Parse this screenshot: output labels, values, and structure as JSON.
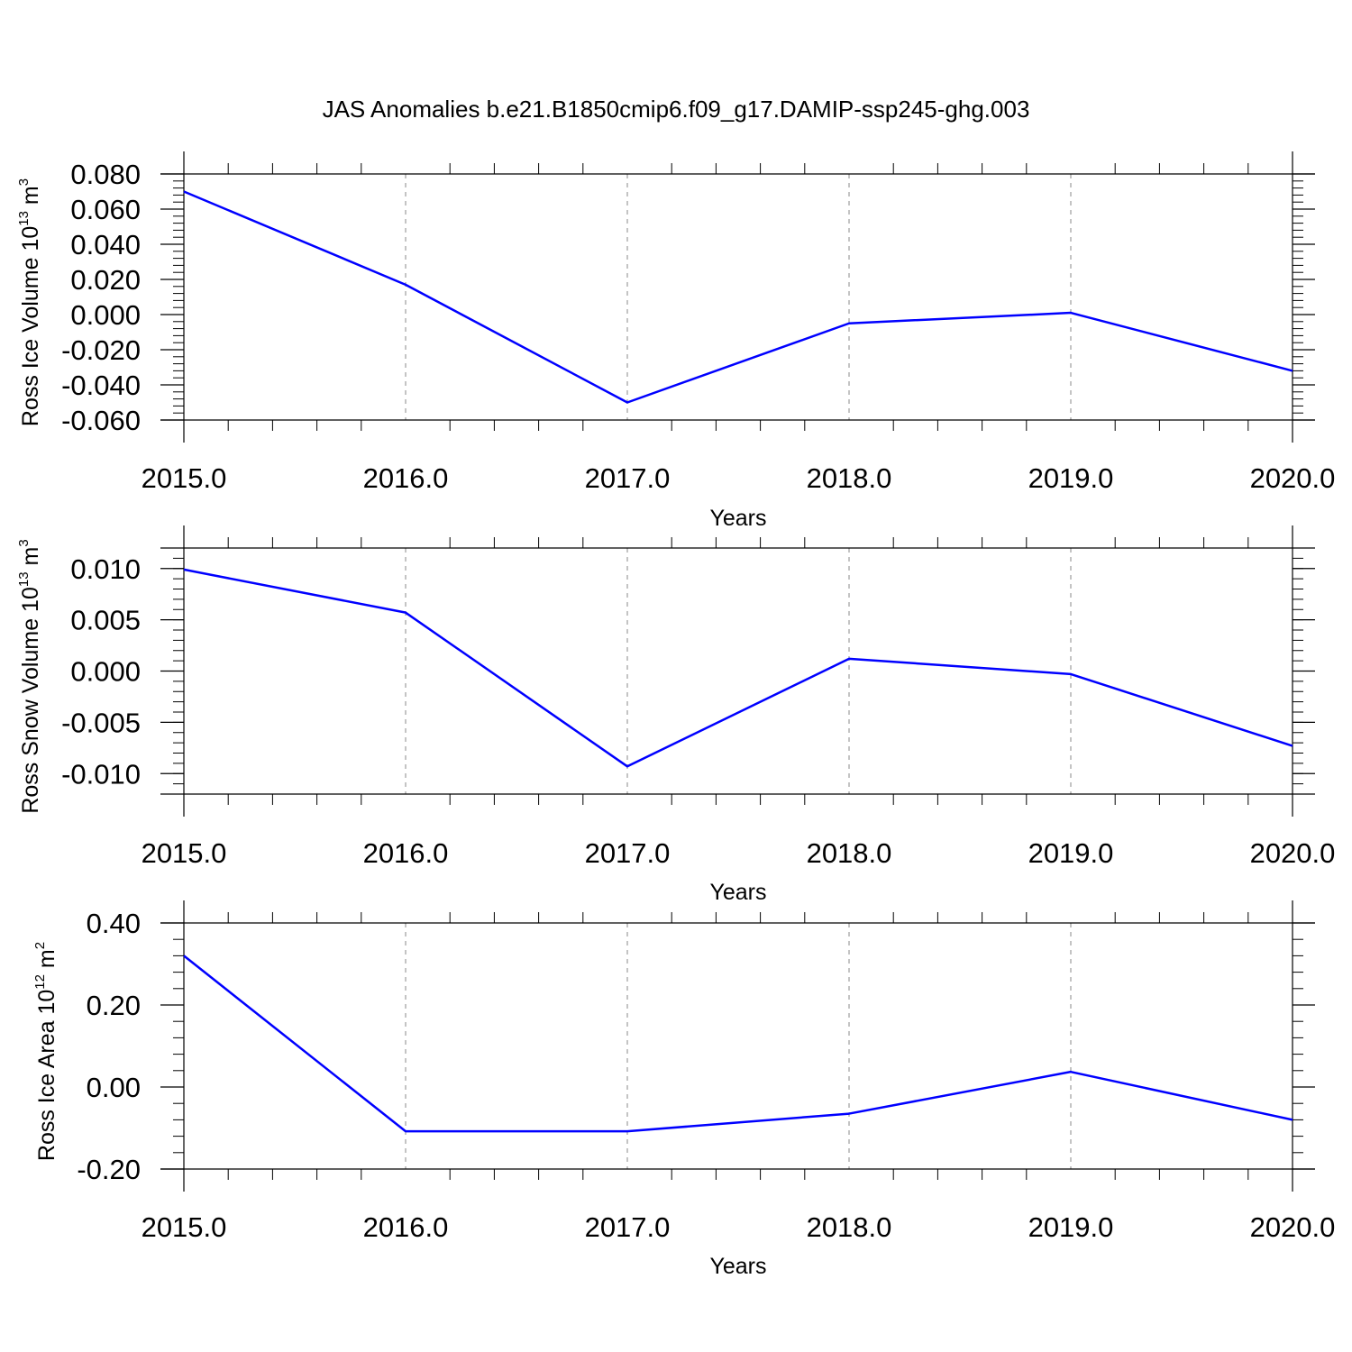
{
  "title": "JAS Anomalies b.e21.B1850cmip6.f09_g17.DAMIP-ssp245-ghg.003",
  "colors": {
    "series": "#0000ff",
    "axis": "#000000",
    "grid": "#888888"
  },
  "chart_data": [
    {
      "type": "line",
      "ylabel": {
        "text": "Ross Ice Volume 10",
        "exp": "13",
        "unit": " m",
        "unit_exp": "3"
      },
      "xlabel": "Years",
      "x": [
        2015,
        2016,
        2017,
        2018,
        2019,
        2020
      ],
      "series": [
        {
          "values": [
            0.07,
            0.017,
            -0.05,
            -0.005,
            0.001,
            -0.032
          ]
        }
      ],
      "xlim": [
        2015,
        2020
      ],
      "ylim": [
        -0.06,
        0.08
      ],
      "yticks": [
        0.08,
        0.06,
        0.04,
        0.02,
        0.0,
        -0.02,
        -0.04,
        -0.06
      ],
      "ytick_labels": [
        "0.080",
        "0.060",
        "0.040",
        "0.020",
        "0.000",
        "-0.020",
        "-0.040",
        "-0.060"
      ],
      "yminor_step": 0.004,
      "xticks": [
        2015,
        2016,
        2017,
        2018,
        2019,
        2020
      ],
      "xtick_labels": [
        "2015.0",
        "2016.0",
        "2017.0",
        "2018.0",
        "2019.0",
        "2020.0"
      ],
      "xminor_step": 0.2,
      "grid": "vertical dashed"
    },
    {
      "type": "line",
      "ylabel": {
        "text": "Ross Snow Volume 10",
        "exp": "13",
        "unit": " m",
        "unit_exp": "3"
      },
      "xlabel": "Years",
      "x": [
        2015,
        2016,
        2017,
        2018,
        2019,
        2020
      ],
      "series": [
        {
          "values": [
            0.0099,
            0.0057,
            -0.0093,
            0.0012,
            -0.0003,
            -0.0073
          ]
        }
      ],
      "xlim": [
        2015,
        2020
      ],
      "ylim": [
        -0.012,
        0.012
      ],
      "yticks": [
        0.01,
        0.005,
        0.0,
        -0.005,
        -0.01
      ],
      "ytick_labels": [
        "0.010",
        "0.005",
        "0.000",
        "-0.005",
        "-0.010"
      ],
      "yminor_step": 0.001,
      "xticks": [
        2015,
        2016,
        2017,
        2018,
        2019,
        2020
      ],
      "xtick_labels": [
        "2015.0",
        "2016.0",
        "2017.0",
        "2018.0",
        "2019.0",
        "2020.0"
      ],
      "xminor_step": 0.2,
      "grid": "vertical dashed"
    },
    {
      "type": "line",
      "ylabel": {
        "text": "Ross Ice Area 10",
        "exp": "12",
        "unit": " m",
        "unit_exp": "2"
      },
      "xlabel": "Years",
      "x": [
        2015,
        2016,
        2017,
        2018,
        2019,
        2020
      ],
      "series": [
        {
          "values": [
            0.32,
            -0.108,
            -0.108,
            -0.065,
            0.037,
            -0.08
          ]
        }
      ],
      "xlim": [
        2015,
        2020
      ],
      "ylim": [
        -0.2,
        0.4
      ],
      "yticks": [
        0.4,
        0.2,
        0.0,
        -0.2
      ],
      "ytick_labels": [
        "0.40",
        "0.20",
        "0.00",
        "-0.20"
      ],
      "yminor_step": 0.04,
      "xticks": [
        2015,
        2016,
        2017,
        2018,
        2019,
        2020
      ],
      "xtick_labels": [
        "2015.0",
        "2016.0",
        "2017.0",
        "2018.0",
        "2019.0",
        "2020.0"
      ],
      "xminor_step": 0.2,
      "grid": "vertical dashed"
    }
  ]
}
